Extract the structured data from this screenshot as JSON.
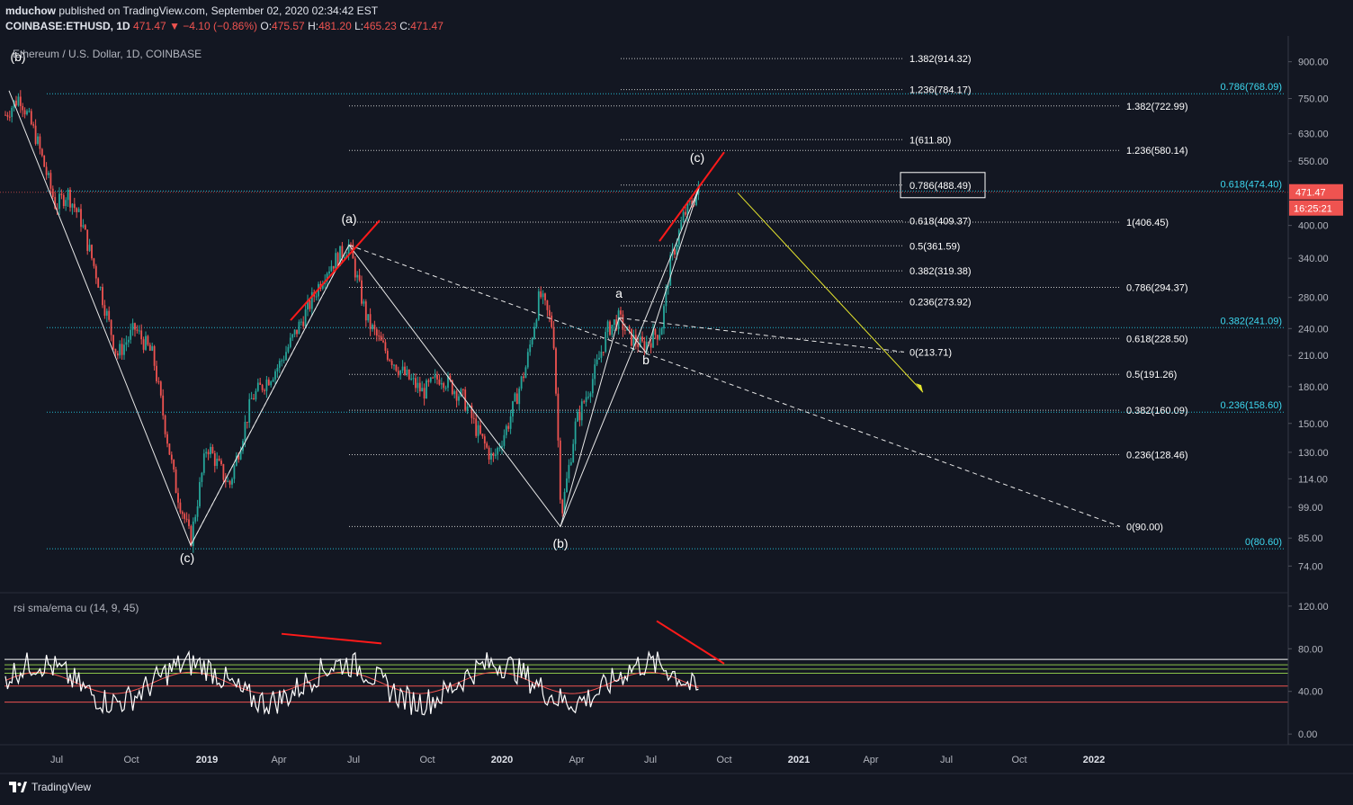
{
  "header": {
    "publisher": "mduchow",
    "published_text": "published on TradingView.com, September 02, 2020 02:34:42 EST",
    "symbol_line": "COINBASE:ETHUSD, 1D",
    "last": "471.47",
    "change": "▼ −4.10 (−0.86%)",
    "open_label": "O:",
    "open": "475.57",
    "high_label": "H:",
    "high": "481.20",
    "low_label": "L:",
    "low": "465.23",
    "close_label": "C:",
    "close": "471.47"
  },
  "symbol_title": "Ethereum / U.S. Dollar, 1D, COINBASE",
  "rsi_title": "rsi sma/ema cu (14, 9, 45)",
  "brand": "TradingView",
  "colors": {
    "bg": "#131722",
    "up": "#26a69a",
    "down": "#ef5350",
    "fib_white": "#ffffff",
    "fib_cyan": "#22d3ee",
    "trend_red": "#ff1a1a",
    "arrow_yellow": "#e6e62e"
  },
  "chart_data": [
    {
      "type": "candlestick",
      "title": "Ethereum / U.S. Dollar, 1D, COINBASE",
      "y_scale": "log",
      "ylim": [
        66,
        1000
      ],
      "y_ticks": [
        "900.00",
        "750.00",
        "630.00",
        "550.00",
        "400.00",
        "340.00",
        "280.00",
        "240.00",
        "210.00",
        "180.00",
        "150.00",
        "130.00",
        "114.00",
        "99.00",
        "85.00",
        "74.00"
      ],
      "x_ticks": [
        "Jul",
        "Oct",
        "2019",
        "Apr",
        "Jul",
        "Oct",
        "2020",
        "Apr",
        "Jul",
        "Oct",
        "2021",
        "Apr",
        "Jul",
        "Oct",
        "2022"
      ],
      "last_price_label": "471.47",
      "countdown_label": "16:25:21",
      "wave_labels": [
        "(b)",
        "(a)",
        "(c)",
        "(b)",
        "(c)",
        "a",
        "b"
      ],
      "fib_levels_white": [
        {
          "label": "1.382(914.32)",
          "price": 914.32
        },
        {
          "label": "1.236(784.17)",
          "price": 784.17
        },
        {
          "label": "1(611.80)",
          "price": 611.8
        },
        {
          "label": "0.786(488.49)",
          "price": 488.49
        },
        {
          "label": "0.618(409.37)",
          "price": 409.37
        },
        {
          "label": "0.5(361.59)",
          "price": 361.59
        },
        {
          "label": "0.382(319.38)",
          "price": 319.38
        },
        {
          "label": "0.236(273.92)",
          "price": 273.92
        },
        {
          "label": "0(213.71)",
          "price": 213.71
        }
      ],
      "fib_levels_white_b": [
        {
          "label": "1.382(722.99)",
          "price": 722.99
        },
        {
          "label": "1.236(580.14)",
          "price": 580.14
        },
        {
          "label": "1(406.45)",
          "price": 406.45
        },
        {
          "label": "0.786(294.37)",
          "price": 294.37
        },
        {
          "label": "0.618(228.50)",
          "price": 228.5
        },
        {
          "label": "0.5(191.26)",
          "price": 191.26
        },
        {
          "label": "0.382(160.09)",
          "price": 160.09
        },
        {
          "label": "0.236(128.46)",
          "price": 128.46
        },
        {
          "label": "0(90.00)",
          "price": 90.0
        }
      ],
      "fib_levels_cyan": [
        {
          "label": "0.786(768.09)",
          "price": 768.09
        },
        {
          "label": "0.618(474.40)",
          "price": 474.4
        },
        {
          "label": "0.382(241.09)",
          "price": 241.09
        },
        {
          "label": "0.236(158.60)",
          "price": 158.6
        },
        {
          "label": "0(80.60)",
          "price": 80.6
        }
      ]
    },
    {
      "type": "line",
      "title": "rsi sma/ema cu (14, 9, 45)",
      "ylim": [
        -10,
        130
      ],
      "y_ticks": [
        "120.00",
        "80.00",
        "40.00",
        "0.00"
      ],
      "bands": [
        70,
        65,
        61,
        57,
        45,
        30
      ]
    }
  ]
}
